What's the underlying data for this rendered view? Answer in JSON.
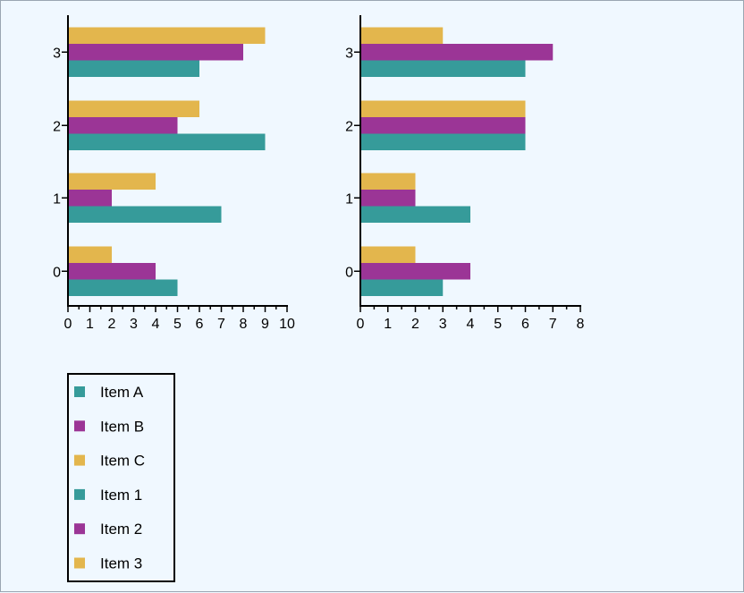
{
  "colors": {
    "a": "#369b9a",
    "b": "#9b3596",
    "c": "#e3b64d"
  },
  "chart_data": [
    {
      "type": "bar",
      "orientation": "horizontal",
      "categories": [
        "0",
        "1",
        "2",
        "3"
      ],
      "series": [
        {
          "name": "Item A",
          "color": "#369b9a",
          "values": [
            5,
            7,
            9,
            6
          ]
        },
        {
          "name": "Item B",
          "color": "#9b3596",
          "values": [
            4,
            2,
            5,
            8
          ]
        },
        {
          "name": "Item C",
          "color": "#e3b64d",
          "values": [
            2,
            4,
            6,
            9
          ]
        }
      ],
      "xlim": [
        0,
        10
      ],
      "xticks": [
        "0",
        "1",
        "2",
        "3",
        "4",
        "5",
        "6",
        "7",
        "8",
        "9",
        "10"
      ],
      "xlabel": "",
      "ylabel": "",
      "title": ""
    },
    {
      "type": "bar",
      "orientation": "horizontal",
      "categories": [
        "0",
        "1",
        "2",
        "3"
      ],
      "series": [
        {
          "name": "Item 1",
          "color": "#369b9a",
          "values": [
            3,
            4,
            6,
            6
          ]
        },
        {
          "name": "Item 2",
          "color": "#9b3596",
          "values": [
            4,
            2,
            6,
            7
          ]
        },
        {
          "name": "Item 3",
          "color": "#e3b64d",
          "values": [
            2,
            2,
            6,
            3
          ]
        }
      ],
      "xlim": [
        0,
        8
      ],
      "xticks": [
        "0",
        "1",
        "2",
        "3",
        "4",
        "5",
        "6",
        "7",
        "8"
      ],
      "xlabel": "",
      "ylabel": "",
      "title": ""
    }
  ],
  "legend": {
    "placement": "bottom-left",
    "items": [
      {
        "label": "Item A",
        "color": "#369b9a"
      },
      {
        "label": "Item B",
        "color": "#9b3596"
      },
      {
        "label": "Item C",
        "color": "#e3b64d"
      },
      {
        "label": "Item 1",
        "color": "#369b9a"
      },
      {
        "label": "Item 2",
        "color": "#9b3596"
      },
      {
        "label": "Item 3",
        "color": "#e3b64d"
      }
    ]
  }
}
